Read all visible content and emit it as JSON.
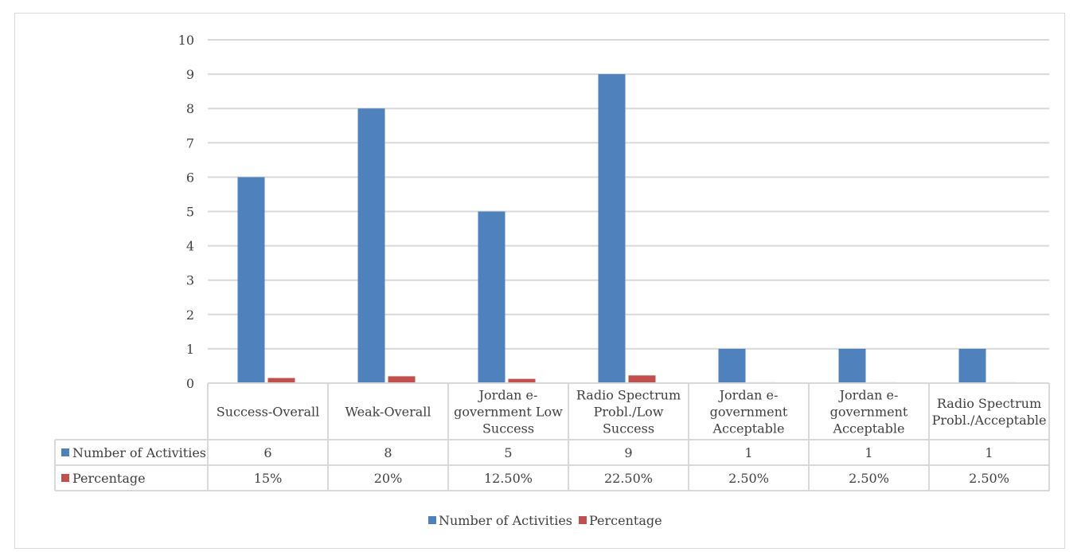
{
  "chart_data": {
    "type": "bar",
    "categories": [
      [
        "Success-Overall"
      ],
      [
        "Weak-Overall"
      ],
      [
        "Jordan e-",
        "government Low",
        "Success"
      ],
      [
        "Radio Spectrum",
        "Probl./Low",
        "Success"
      ],
      [
        "Jordan e-",
        "government",
        "Acceptable"
      ],
      [
        "Jordan e-",
        "government",
        "Acceptable"
      ],
      [
        "Radio Spectrum",
        "Probl./Acceptable"
      ]
    ],
    "series": [
      {
        "name": "Number of Activities",
        "color": "#4f81bd",
        "values": [
          6,
          8,
          5,
          9,
          1,
          1,
          1
        ],
        "table_labels": [
          "6",
          "8",
          "5",
          "9",
          "1",
          "1",
          "1"
        ]
      },
      {
        "name": "Percentage",
        "color": "#c0504d",
        "values": [
          0.15,
          0.2,
          0.125,
          0.225,
          0.025,
          0.025,
          0.025
        ],
        "table_labels": [
          "15%",
          "20%",
          "12.50%",
          "22.50%",
          "2.50%",
          "2.50%",
          "2.50%"
        ]
      }
    ],
    "y_ticks": [
      "0",
      "1",
      "2",
      "3",
      "4",
      "5",
      "6",
      "7",
      "8",
      "9",
      "10"
    ],
    "ylim": [
      0,
      10
    ],
    "grid": true,
    "legend_position": "bottom",
    "data_table": true
  }
}
